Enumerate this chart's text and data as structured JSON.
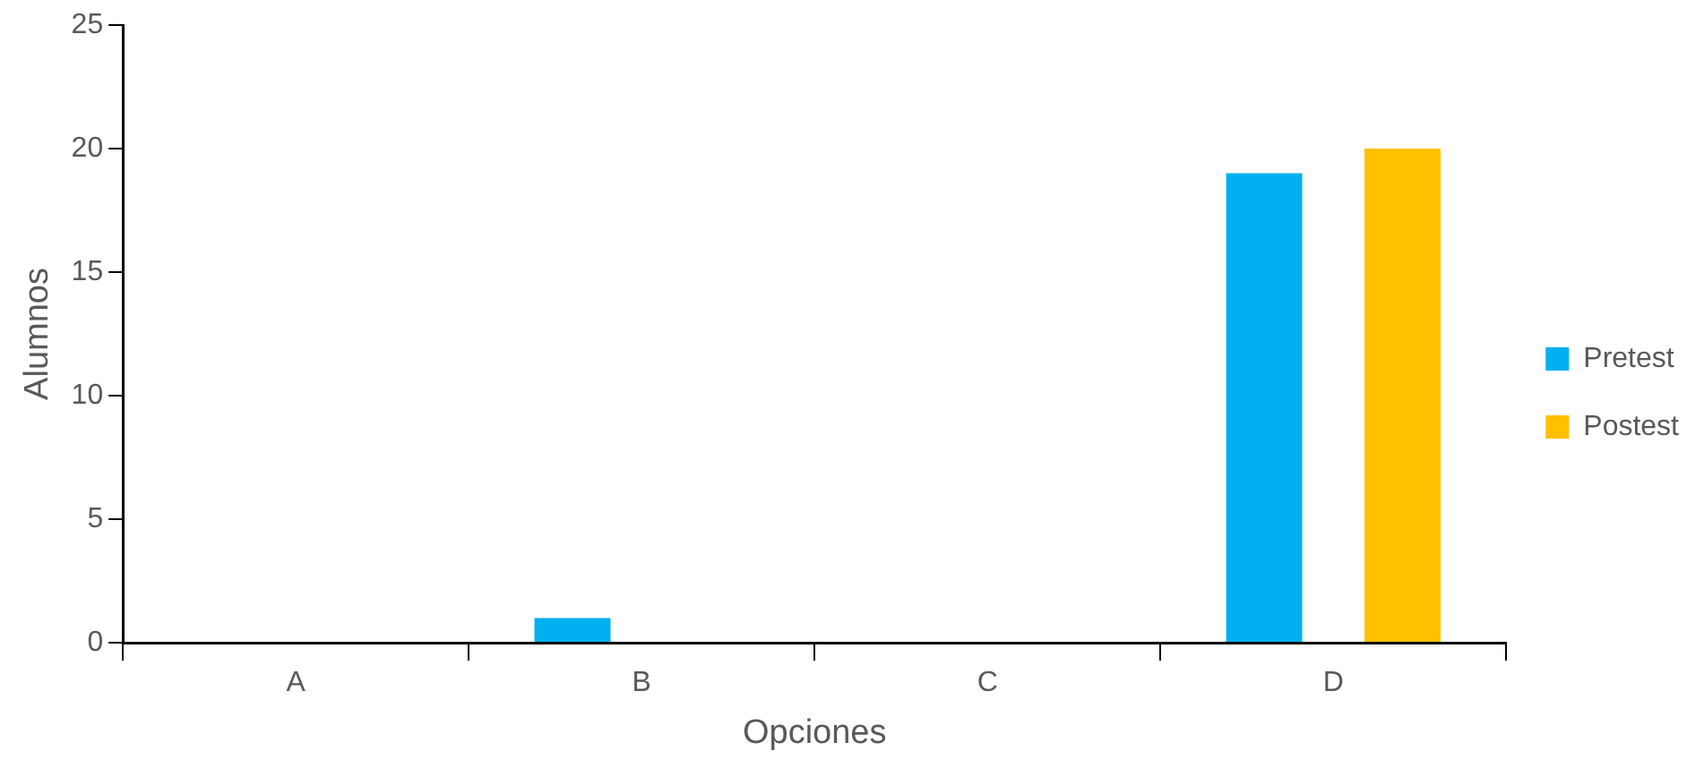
{
  "chart_data": {
    "type": "bar",
    "xlabel": "Opciones",
    "ylabel": "Alumnos",
    "categories": [
      "A",
      "B",
      "C",
      "D"
    ],
    "series": [
      {
        "name": "Pretest",
        "color": "#00b0f0",
        "values": [
          0,
          1,
          0,
          19
        ]
      },
      {
        "name": "Postest",
        "color": "#ffc000",
        "values": [
          0,
          0,
          0,
          20
        ]
      }
    ],
    "ylim": [
      0,
      25
    ],
    "yticks": [
      0,
      5,
      10,
      15,
      20,
      25
    ],
    "grid": false,
    "legend": "right"
  }
}
